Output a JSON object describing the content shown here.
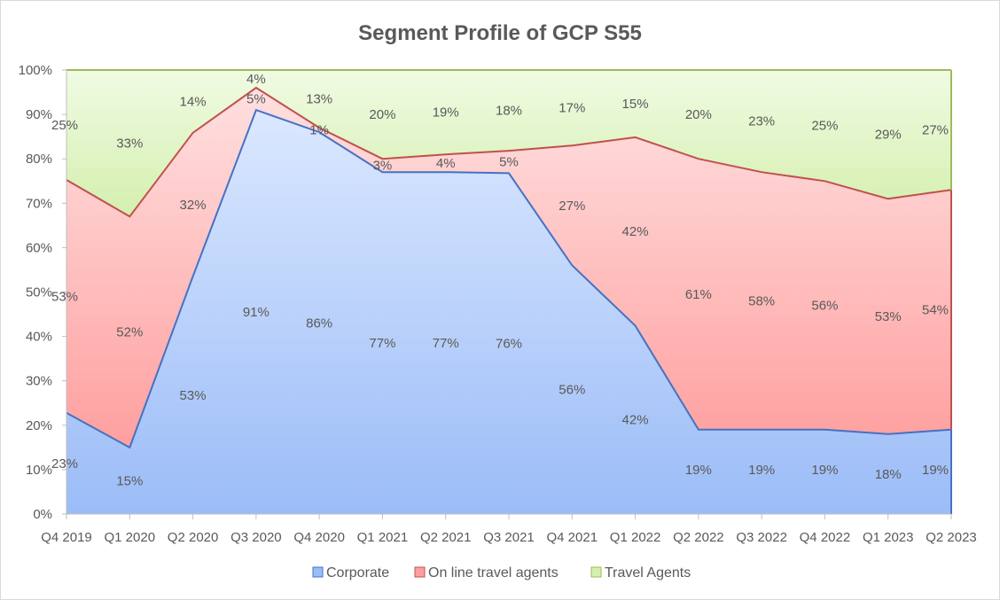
{
  "chart_data": {
    "type": "area",
    "stacked": true,
    "percent_stacked": true,
    "title": "Segment Profile of GCP S55",
    "categories": [
      "Q4 2019",
      "Q1 2020",
      "Q2 2020",
      "Q3 2020",
      "Q4 2020",
      "Q1 2021",
      "Q2 2021",
      "Q3 2021",
      "Q4 2021",
      "Q1 2022",
      "Q2 2022",
      "Q3 2022",
      "Q4 2022",
      "Q1 2023",
      "Q2 2023"
    ],
    "y_ticks": [
      "0%",
      "10%",
      "20%",
      "30%",
      "40%",
      "50%",
      "60%",
      "70%",
      "80%",
      "90%",
      "100%"
    ],
    "ylim": [
      0,
      100
    ],
    "legend_position": "bottom",
    "series": [
      {
        "name": "Corporate",
        "color": "#4f81bd",
        "line_color": "#4472c4",
        "values": [
          23,
          15,
          53,
          91,
          86,
          77,
          77,
          76,
          56,
          42,
          19,
          19,
          19,
          18,
          19
        ]
      },
      {
        "name": "On line travel agents",
        "color": "#ff8c8c",
        "line_color": "#c0504d",
        "values": [
          53,
          52,
          32,
          5,
          1,
          3,
          4,
          5,
          27,
          42,
          61,
          58,
          56,
          53,
          54
        ]
      },
      {
        "name": "Travel Agents",
        "color": "#c6e99a",
        "line_color": "#9bbb59",
        "values": [
          25,
          33,
          14,
          4,
          13,
          20,
          19,
          18,
          17,
          15,
          20,
          23,
          25,
          29,
          27
        ]
      }
    ]
  }
}
